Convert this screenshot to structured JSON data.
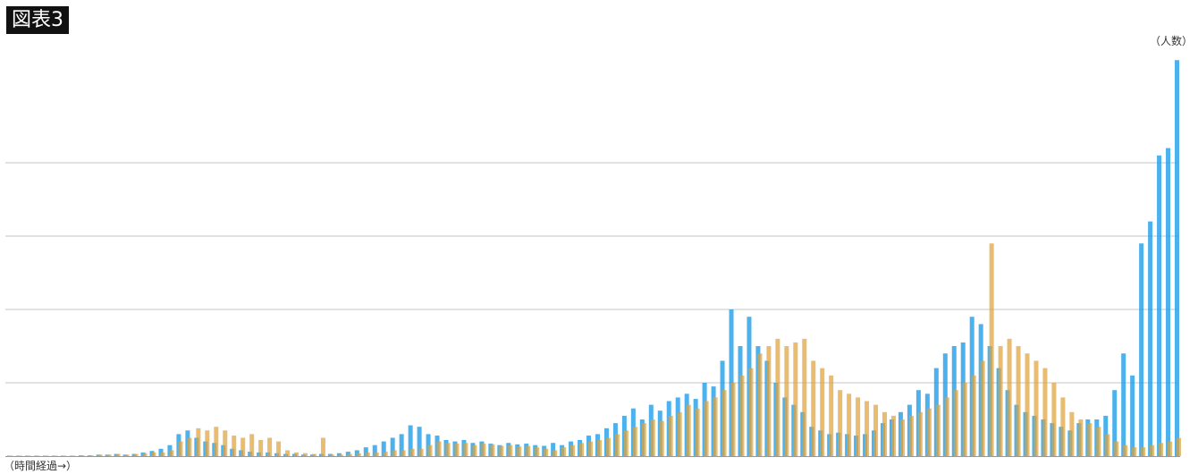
{
  "chart_data": {
    "type": "bar",
    "title": "図表3",
    "ylabel": "（人数）",
    "xlabel": "（時間経過→）",
    "ylim": [
      0,
      5.6
    ],
    "grid": true,
    "gridlines": [
      1,
      2,
      3,
      4
    ],
    "tick_labels_shown": false,
    "legend": "none",
    "colors": {
      "series_a": "#1f9ee8",
      "series_b": "#dfa23a",
      "grid": "#e2e2e2",
      "axis": "#999999"
    },
    "series": [
      {
        "values": [
          0,
          0,
          0,
          0,
          0,
          0,
          0,
          0,
          0.01,
          0.01,
          0.02,
          0.02,
          0.03,
          0.02,
          0.03,
          0.05,
          0.07,
          0.1,
          0.15,
          0.3,
          0.35,
          0.25,
          0.2,
          0.18,
          0.15,
          0.1,
          0.08,
          0.06,
          0.05,
          0.05,
          0.04,
          0.03,
          0.03,
          0.02,
          0.02,
          0.03,
          0.03,
          0.04,
          0.06,
          0.08,
          0.12,
          0.15,
          0.2,
          0.25,
          0.3,
          0.42,
          0.4,
          0.3,
          0.28,
          0.22,
          0.2,
          0.22,
          0.18,
          0.2,
          0.17,
          0.15,
          0.18,
          0.16,
          0.17,
          0.15,
          0.14,
          0.18,
          0.15,
          0.2,
          0.22,
          0.28,
          0.3,
          0.38,
          0.45,
          0.55,
          0.65,
          0.5,
          0.7,
          0.62,
          0.75,
          0.8,
          0.85,
          0.78,
          1.0,
          0.95,
          1.3,
          2.0,
          1.5,
          1.9,
          1.5,
          1.3,
          1.0,
          0.8,
          0.7,
          0.6,
          0.4,
          0.35,
          0.3,
          0.32,
          0.3,
          0.28,
          0.3,
          0.35,
          0.45,
          0.5,
          0.6,
          0.7,
          0.9,
          0.85,
          1.2,
          1.4,
          1.5,
          1.55,
          1.9,
          1.8,
          1.5,
          1.2,
          0.9,
          0.7,
          0.6,
          0.55,
          0.5,
          0.45,
          0.4,
          0.35,
          0.45,
          0.5,
          0.5,
          0.55,
          0.9,
          1.4,
          1.1,
          2.9,
          3.2,
          4.1,
          4.2,
          5.4
        ]
      },
      {
        "values": [
          0,
          0,
          0,
          0,
          0,
          0,
          0,
          0,
          0.01,
          0.01,
          0.02,
          0.02,
          0.03,
          0.02,
          0.03,
          0.04,
          0.05,
          0.05,
          0.08,
          0.2,
          0.25,
          0.38,
          0.35,
          0.4,
          0.35,
          0.28,
          0.25,
          0.3,
          0.22,
          0.25,
          0.2,
          0.08,
          0.05,
          0.04,
          0.03,
          0.25,
          0.02,
          0.02,
          0.03,
          0.04,
          0.05,
          0.05,
          0.06,
          0.08,
          0.08,
          0.1,
          0.1,
          0.15,
          0.2,
          0.18,
          0.17,
          0.18,
          0.15,
          0.17,
          0.16,
          0.14,
          0.15,
          0.13,
          0.14,
          0.12,
          0.1,
          0.08,
          0.12,
          0.15,
          0.18,
          0.2,
          0.22,
          0.25,
          0.3,
          0.35,
          0.4,
          0.45,
          0.5,
          0.48,
          0.55,
          0.6,
          0.7,
          0.65,
          0.75,
          0.8,
          0.9,
          1.0,
          1.1,
          1.2,
          1.4,
          1.5,
          1.6,
          1.5,
          1.55,
          1.6,
          1.3,
          1.2,
          1.1,
          0.9,
          0.85,
          0.8,
          0.75,
          0.7,
          0.6,
          0.55,
          0.5,
          0.55,
          0.6,
          0.65,
          0.7,
          0.8,
          0.9,
          1.0,
          1.1,
          1.3,
          2.9,
          1.5,
          1.6,
          1.5,
          1.4,
          1.3,
          1.2,
          1.0,
          0.8,
          0.6,
          0.5,
          0.45,
          0.4,
          0.3,
          0.2,
          0.15,
          0.12,
          0.12,
          0.15,
          0.18,
          0.2,
          0.25
        ]
      }
    ]
  }
}
